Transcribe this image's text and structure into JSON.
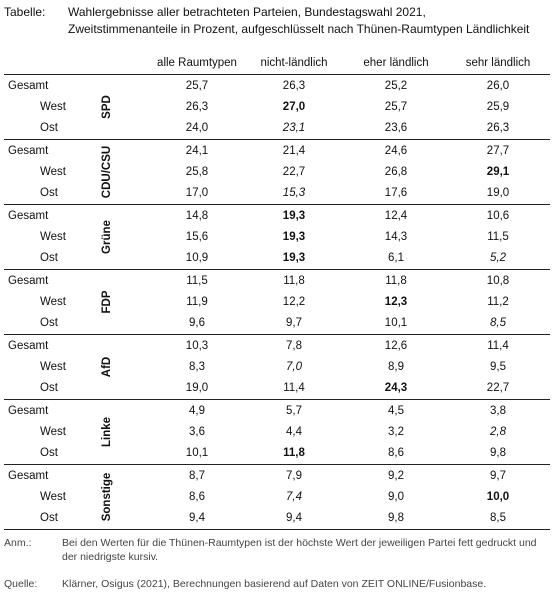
{
  "caption": {
    "label": "Tabelle:",
    "line1": "Wahlergebnisse aller betrachteten Parteien, Bundestagswahl 2021,",
    "line2": "Zweitstimmenanteile in Prozent, aufgeschlüsselt nach Thünen-Raumtypen Ländlichkeit"
  },
  "columns": [
    "alle Raumtypen",
    "nicht-ländlich",
    "eher ländlich",
    "sehr ländlich"
  ],
  "groups": [
    {
      "party": "SPD",
      "rows": [
        {
          "label": "Gesamt",
          "values": [
            "25,7",
            "26,3",
            "25,2",
            "26,0"
          ],
          "styles": [
            "",
            "",
            "",
            ""
          ]
        },
        {
          "label": "West",
          "values": [
            "26,3",
            "27,0",
            "25,7",
            "25,9"
          ],
          "styles": [
            "",
            "b",
            "",
            ""
          ]
        },
        {
          "label": "Ost",
          "values": [
            "24,0",
            "23,1",
            "23,6",
            "26,3"
          ],
          "styles": [
            "",
            "i",
            "",
            ""
          ]
        }
      ]
    },
    {
      "party": "CDU/CSU",
      "rows": [
        {
          "label": "Gesamt",
          "values": [
            "24,1",
            "21,4",
            "24,6",
            "27,7"
          ],
          "styles": [
            "",
            "",
            "",
            ""
          ]
        },
        {
          "label": "West",
          "values": [
            "25,8",
            "22,7",
            "26,8",
            "29,1"
          ],
          "styles": [
            "",
            "",
            "",
            "b"
          ]
        },
        {
          "label": "Ost",
          "values": [
            "17,0",
            "15,3",
            "17,6",
            "19,0"
          ],
          "styles": [
            "",
            "i",
            "",
            ""
          ]
        }
      ]
    },
    {
      "party": "Grüne",
      "rows": [
        {
          "label": "Gesamt",
          "values": [
            "14,8",
            "19,3",
            "12,4",
            "10,6"
          ],
          "styles": [
            "",
            "b",
            "",
            ""
          ]
        },
        {
          "label": "West",
          "values": [
            "15,6",
            "19,3",
            "14,3",
            "11,5"
          ],
          "styles": [
            "",
            "b",
            "",
            ""
          ]
        },
        {
          "label": "Ost",
          "values": [
            "10,9",
            "19,3",
            "6,1",
            "5,2"
          ],
          "styles": [
            "",
            "b",
            "",
            "i"
          ]
        }
      ]
    },
    {
      "party": "FDP",
      "rows": [
        {
          "label": "Gesamt",
          "values": [
            "11,5",
            "11,8",
            "11,8",
            "10,8"
          ],
          "styles": [
            "",
            "",
            "",
            ""
          ]
        },
        {
          "label": "West",
          "values": [
            "11,9",
            "12,2",
            "12,3",
            "11,2"
          ],
          "styles": [
            "",
            "",
            "b",
            ""
          ]
        },
        {
          "label": "Ost",
          "values": [
            "9,6",
            "9,7",
            "10,1",
            "8,5"
          ],
          "styles": [
            "",
            "",
            "",
            "i"
          ]
        }
      ]
    },
    {
      "party": "AfD",
      "rows": [
        {
          "label": "Gesamt",
          "values": [
            "10,3",
            "7,8",
            "12,6",
            "11,4"
          ],
          "styles": [
            "",
            "",
            "",
            ""
          ]
        },
        {
          "label": "West",
          "values": [
            "8,3",
            "7,0",
            "8,9",
            "9,5"
          ],
          "styles": [
            "",
            "i",
            "",
            ""
          ]
        },
        {
          "label": "Ost",
          "values": [
            "19,0",
            "11,4",
            "24,3",
            "22,7"
          ],
          "styles": [
            "",
            "",
            "b",
            ""
          ]
        }
      ]
    },
    {
      "party": "Linke",
      "rows": [
        {
          "label": "Gesamt",
          "values": [
            "4,9",
            "5,7",
            "4,5",
            "3,8"
          ],
          "styles": [
            "",
            "",
            "",
            ""
          ]
        },
        {
          "label": "West",
          "values": [
            "3,6",
            "4,4",
            "3,2",
            "2,8"
          ],
          "styles": [
            "",
            "",
            "",
            "i"
          ]
        },
        {
          "label": "Ost",
          "values": [
            "10,1",
            "11,8",
            "8,6",
            "9,8"
          ],
          "styles": [
            "",
            "b",
            "",
            ""
          ]
        }
      ]
    },
    {
      "party": "Sonstige",
      "rows": [
        {
          "label": "Gesamt",
          "values": [
            "8,7",
            "7,9",
            "9,2",
            "9,7"
          ],
          "styles": [
            "",
            "",
            "",
            ""
          ]
        },
        {
          "label": "West",
          "values": [
            "8,6",
            "7,4",
            "9,0",
            "10,0"
          ],
          "styles": [
            "",
            "i",
            "",
            "b"
          ]
        },
        {
          "label": "Ost",
          "values": [
            "9,4",
            "9,4",
            "9,8",
            "8,5"
          ],
          "styles": [
            "",
            "",
            "",
            ""
          ]
        }
      ]
    }
  ],
  "notes": {
    "label": "Anm.:",
    "text": "Bei den Werten für die Thünen-Raumtypen ist der höchste Wert der jeweiligen Partei fett gedruckt und der niedrigste kursiv."
  },
  "source": {
    "label": "Quelle:",
    "text": "Klärner, Osigus (2021), Berechnungen basierend auf Daten von ZEIT ONLINE/Fusionbase."
  }
}
